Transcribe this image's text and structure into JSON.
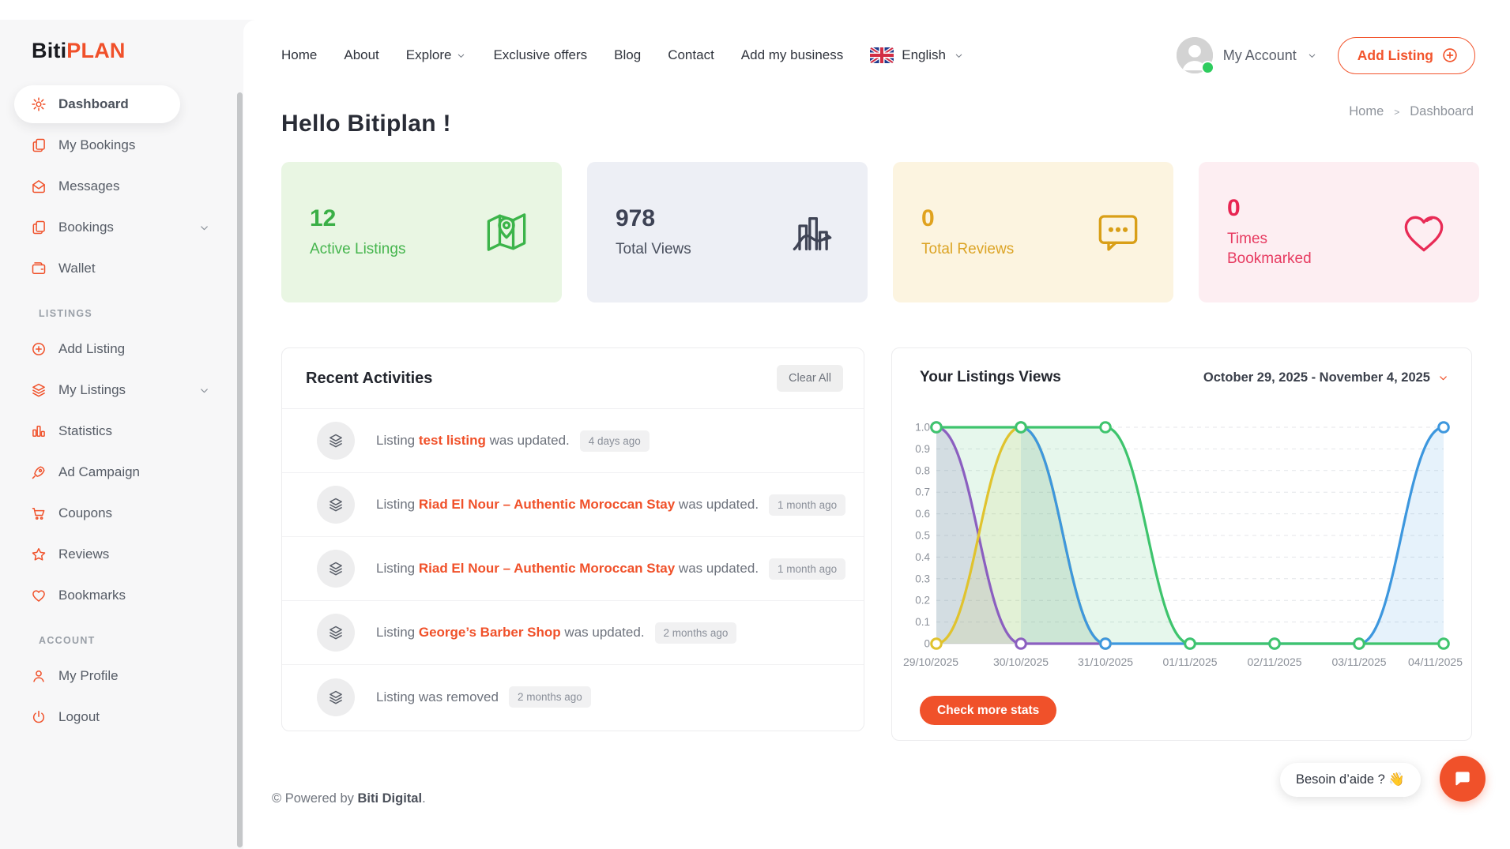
{
  "brand": {
    "name_primary": "Biti",
    "name_secondary": "PLAN"
  },
  "nav": {
    "items": [
      {
        "label": "Home",
        "chevron": false
      },
      {
        "label": "About",
        "chevron": false
      },
      {
        "label": "Explore",
        "chevron": true
      },
      {
        "label": "Exclusive offers",
        "chevron": false
      },
      {
        "label": "Blog",
        "chevron": false
      },
      {
        "label": "Contact",
        "chevron": false
      },
      {
        "label": "Add my business",
        "chevron": false
      }
    ],
    "language": {
      "label": "English",
      "flag": "uk-flag"
    },
    "account_label": "My Account",
    "add_listing_label": "Add Listing"
  },
  "page": {
    "greeting": "Hello Bitiplan !"
  },
  "breadcrumb": {
    "items": [
      "Home",
      "Dashboard"
    ],
    "separator": ">"
  },
  "sidebar": {
    "sections": [
      {
        "header": "",
        "items": [
          {
            "label": "Dashboard",
            "icon": "gear",
            "active": true,
            "chevron": false
          },
          {
            "label": "My Bookings",
            "icon": "pages",
            "active": false,
            "chevron": false
          },
          {
            "label": "Messages",
            "icon": "mail",
            "active": false,
            "chevron": false
          },
          {
            "label": "Bookings",
            "icon": "pages",
            "active": false,
            "chevron": true
          },
          {
            "label": "Wallet",
            "icon": "wallet",
            "active": false,
            "chevron": false
          }
        ]
      },
      {
        "header": "LISTINGS",
        "items": [
          {
            "label": "Add Listing",
            "icon": "plus-circle",
            "active": false,
            "chevron": false
          },
          {
            "label": "My Listings",
            "icon": "layers",
            "active": false,
            "chevron": true
          },
          {
            "label": "Statistics",
            "icon": "bar-chart",
            "active": false,
            "chevron": false
          },
          {
            "label": "Ad Campaign",
            "icon": "rocket",
            "active": false,
            "chevron": false
          },
          {
            "label": "Coupons",
            "icon": "cart",
            "active": false,
            "chevron": false
          },
          {
            "label": "Reviews",
            "icon": "star",
            "active": false,
            "chevron": false
          },
          {
            "label": "Bookmarks",
            "icon": "heart",
            "active": false,
            "chevron": false
          }
        ]
      },
      {
        "header": "ACCOUNT",
        "items": [
          {
            "label": "My Profile",
            "icon": "user",
            "active": false,
            "chevron": false
          },
          {
            "label": "Logout",
            "icon": "power",
            "active": false,
            "chevron": false
          }
        ]
      }
    ]
  },
  "stats": [
    {
      "value": "12",
      "label": "Active Listings",
      "icon": "map-pin",
      "bg": "#e9f6e3",
      "value_color": "#3aaf46",
      "label_color": "#45b54d",
      "icon_color": "#3cb44a"
    },
    {
      "value": "978",
      "label": "Total Views",
      "icon": "chart-arrow",
      "bg": "#edeff5",
      "value_color": "#3d4254",
      "label_color": "#4a505e",
      "icon_color": "#3f4455"
    },
    {
      "value": "0",
      "label": "Total Reviews",
      "icon": "chat-dots",
      "bg": "#fcf4e0",
      "value_color": "#e0a21e",
      "label_color": "#dca425",
      "icon_color": "#d99f17"
    },
    {
      "value": "0",
      "label": "Times Bookmarked",
      "icon": "heart-big",
      "bg": "#fdeef2",
      "value_color": "#e82552",
      "label_color": "#e73b61",
      "icon_color": "#e82b56"
    }
  ],
  "activities": {
    "title": "Recent Activities",
    "clear_all_label": "Clear All",
    "items": [
      {
        "prefix": "Listing ",
        "link": "test listing",
        "suffix": " was updated.",
        "time": "4 days ago"
      },
      {
        "prefix": "Listing ",
        "link": "Riad El Nour – Authentic Moroccan Stay",
        "suffix": " was updated.",
        "time": "1 month ago"
      },
      {
        "prefix": "Listing ",
        "link": "Riad El Nour – Authentic Moroccan Stay",
        "suffix": " was updated.",
        "time": "1 month ago"
      },
      {
        "prefix": "Listing ",
        "link": "George’s Barber Shop",
        "suffix": " was updated.",
        "time": "2 months ago"
      },
      {
        "prefix": "Listing was removed",
        "link": null,
        "suffix": "",
        "time": "2 months ago"
      }
    ]
  },
  "listings_views": {
    "title": "Your Listings Views",
    "date_range": "October 29, 2025 - November 4, 2025",
    "button_label": "Check more stats"
  },
  "chart_data": {
    "type": "line",
    "title": "Your Listings Views",
    "x": [
      "29/10/2025",
      "30/10/2025",
      "31/10/2025",
      "01/11/2025",
      "02/11/2025",
      "03/11/2025",
      "04/11/2025"
    ],
    "xlabel": "",
    "ylabel": "",
    "ylim": [
      0,
      1
    ],
    "yticks": [
      0,
      0.1,
      0.2,
      0.3,
      0.4,
      0.5,
      0.6,
      0.7,
      0.8,
      0.9,
      1.0
    ],
    "grid": true,
    "legend": false,
    "series": [
      {
        "name": "series-purple",
        "color": "#8b5fc0",
        "fill_opacity": 0.18,
        "values": [
          1,
          0,
          0,
          null,
          null,
          null,
          null
        ]
      },
      {
        "name": "series-yellow",
        "color": "#e0c32e",
        "fill_opacity": 0.12,
        "values": [
          0,
          1,
          0,
          null,
          null,
          null,
          null
        ]
      },
      {
        "name": "series-blue",
        "color": "#3d97de",
        "fill_opacity": 0.13,
        "values": [
          null,
          1,
          0,
          0,
          0,
          0,
          1
        ]
      },
      {
        "name": "series-green",
        "color": "#3ec46d",
        "fill_opacity": 0.13,
        "values": [
          1,
          1,
          1,
          0,
          0,
          0,
          0
        ]
      }
    ]
  },
  "footer": {
    "text_prefix": "© Powered by ",
    "brand": "Biti Digital",
    "text_suffix": "."
  },
  "chat": {
    "tooltip": "Besoin d’aide ? 👋"
  }
}
